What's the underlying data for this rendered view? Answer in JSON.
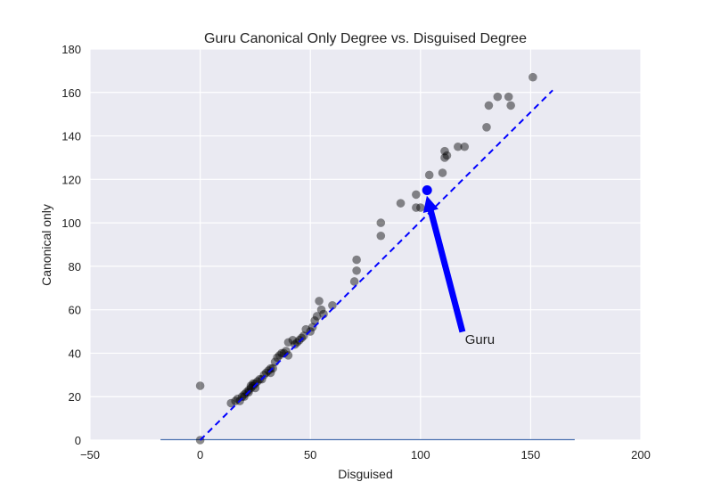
{
  "chart_data": {
    "type": "scatter",
    "title": "Guru Canonical Only Degree vs. Disguised Degree",
    "xlabel": "Disguised",
    "ylabel": "Canonical only",
    "xlim": [
      -50,
      200
    ],
    "ylim": [
      0,
      180
    ],
    "xticks": [
      -50,
      0,
      50,
      100,
      150,
      200
    ],
    "yticks": [
      0,
      20,
      40,
      60,
      80,
      100,
      120,
      140,
      160,
      180
    ],
    "grid": true,
    "background_color": "#eaeaf2",
    "point_color": "#000000",
    "point_opacity": 0.45,
    "points": [
      [
        0,
        25
      ],
      [
        0,
        0
      ],
      [
        14,
        17
      ],
      [
        16,
        18
      ],
      [
        17,
        19
      ],
      [
        18,
        18
      ],
      [
        19,
        20
      ],
      [
        20,
        21
      ],
      [
        20,
        20
      ],
      [
        21,
        22
      ],
      [
        22,
        23
      ],
      [
        22,
        22
      ],
      [
        23,
        24
      ],
      [
        23,
        25
      ],
      [
        24,
        25
      ],
      [
        24,
        26
      ],
      [
        25,
        26
      ],
      [
        25,
        24
      ],
      [
        26,
        27
      ],
      [
        27,
        28
      ],
      [
        28,
        28
      ],
      [
        29,
        30
      ],
      [
        30,
        31
      ],
      [
        31,
        32
      ],
      [
        32,
        31
      ],
      [
        32,
        33
      ],
      [
        33,
        33
      ],
      [
        34,
        36
      ],
      [
        35,
        38
      ],
      [
        36,
        39
      ],
      [
        37,
        40
      ],
      [
        38,
        40
      ],
      [
        39,
        41
      ],
      [
        40,
        39
      ],
      [
        40,
        45
      ],
      [
        42,
        46
      ],
      [
        43,
        44
      ],
      [
        44,
        45
      ],
      [
        45,
        46
      ],
      [
        46,
        47
      ],
      [
        47,
        48
      ],
      [
        48,
        51
      ],
      [
        50,
        50
      ],
      [
        51,
        52
      ],
      [
        52,
        55
      ],
      [
        53,
        57
      ],
      [
        54,
        64
      ],
      [
        55,
        60
      ],
      [
        56,
        58
      ],
      [
        60,
        62
      ],
      [
        70,
        73
      ],
      [
        71,
        83
      ],
      [
        71,
        78
      ],
      [
        82,
        100
      ],
      [
        82,
        94
      ],
      [
        91,
        109
      ],
      [
        98,
        107
      ],
      [
        98,
        113
      ],
      [
        100,
        107
      ],
      [
        104,
        122
      ],
      [
        110,
        123
      ],
      [
        111,
        130
      ],
      [
        111,
        133
      ],
      [
        112,
        131
      ],
      [
        117,
        135
      ],
      [
        120,
        135
      ],
      [
        130,
        144
      ],
      [
        131,
        154
      ],
      [
        135,
        158
      ],
      [
        140,
        158
      ],
      [
        141,
        154
      ],
      [
        151,
        167
      ]
    ],
    "highlight": {
      "name": "Guru",
      "x": 103,
      "y": 115,
      "color": "#0000ff"
    },
    "reference_line": {
      "x": [
        0,
        160
      ],
      "y": [
        0,
        161
      ],
      "color": "#0000ff",
      "style": "dashed"
    },
    "baseline": {
      "x": [
        -18,
        170
      ],
      "y": [
        0,
        0
      ],
      "color": "#4c72b0"
    },
    "annotation": {
      "text": "Guru",
      "text_x": 119,
      "text_y": 43,
      "arrow_tail": [
        119,
        50
      ],
      "arrow_head": [
        103,
        112
      ],
      "arrow_color": "#0000ff"
    }
  }
}
